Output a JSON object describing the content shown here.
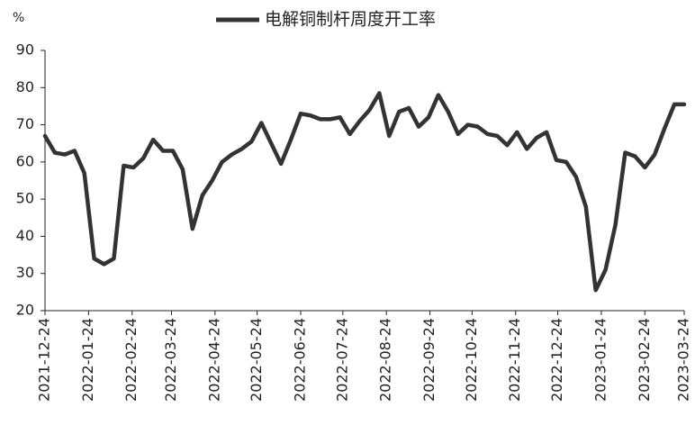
{
  "chart_data": {
    "type": "line",
    "y_unit": "%",
    "x": [
      "2021-12-24",
      "2021-12-31",
      "2022-01-07",
      "2022-01-14",
      "2022-01-21",
      "2022-01-28",
      "2022-02-04",
      "2022-02-11",
      "2022-02-18",
      "2022-02-25",
      "2022-03-04",
      "2022-03-11",
      "2022-03-18",
      "2022-03-25",
      "2022-04-01",
      "2022-04-08",
      "2022-04-15",
      "2022-04-22",
      "2022-04-29",
      "2022-05-06",
      "2022-05-13",
      "2022-05-20",
      "2022-05-27",
      "2022-06-03",
      "2022-06-10",
      "2022-06-17",
      "2022-06-24",
      "2022-07-01",
      "2022-07-08",
      "2022-07-15",
      "2022-07-22",
      "2022-07-29",
      "2022-08-05",
      "2022-08-12",
      "2022-08-19",
      "2022-08-26",
      "2022-09-02",
      "2022-09-09",
      "2022-09-16",
      "2022-09-23",
      "2022-09-30",
      "2022-10-07",
      "2022-10-14",
      "2022-10-21",
      "2022-10-28",
      "2022-11-04",
      "2022-11-11",
      "2022-11-18",
      "2022-11-25",
      "2022-12-02",
      "2022-12-09",
      "2022-12-16",
      "2022-12-23",
      "2022-12-30",
      "2023-01-06",
      "2023-01-13",
      "2023-01-20",
      "2023-01-27",
      "2023-02-03",
      "2023-02-10",
      "2023-02-17",
      "2023-02-24",
      "2023-03-03",
      "2023-03-10",
      "2023-03-17",
      "2023-03-24"
    ],
    "series": [
      {
        "name": "电解铜制杆周度开工率",
        "color": "#333333",
        "values": [
          67,
          62.5,
          62,
          63,
          57,
          34,
          32.5,
          34,
          59,
          58.5,
          61,
          66,
          63,
          63,
          58,
          42,
          51,
          55,
          60,
          62,
          63.5,
          65.5,
          70.5,
          65,
          59.5,
          66,
          73,
          72.5,
          71.5,
          71.5,
          72,
          67.5,
          71,
          74,
          78.5,
          67,
          73.5,
          74.5,
          69.5,
          72,
          78,
          73.5,
          67.5,
          70,
          69.5,
          67.5,
          67,
          64.5,
          68,
          63.5,
          66.5,
          68,
          60.5,
          60,
          56,
          48,
          25.5,
          31,
          43,
          62.5,
          61.5,
          58.5,
          62,
          69,
          75.5,
          75.5
        ]
      }
    ],
    "xlim": [
      "2021-12-24",
      "2023-03-24"
    ],
    "xticks": [
      "2021-12-24",
      "2022-01-24",
      "2022-02-24",
      "2022-03-24",
      "2022-04-24",
      "2022-05-24",
      "2022-06-24",
      "2022-07-24",
      "2022-08-24",
      "2022-09-24",
      "2022-10-24",
      "2022-11-24",
      "2022-12-24",
      "2023-01-24",
      "2023-02-24",
      "2023-03-24"
    ],
    "ylim": [
      20,
      90
    ],
    "yticks": [
      20,
      30,
      40,
      50,
      60,
      70,
      80,
      90
    ]
  }
}
